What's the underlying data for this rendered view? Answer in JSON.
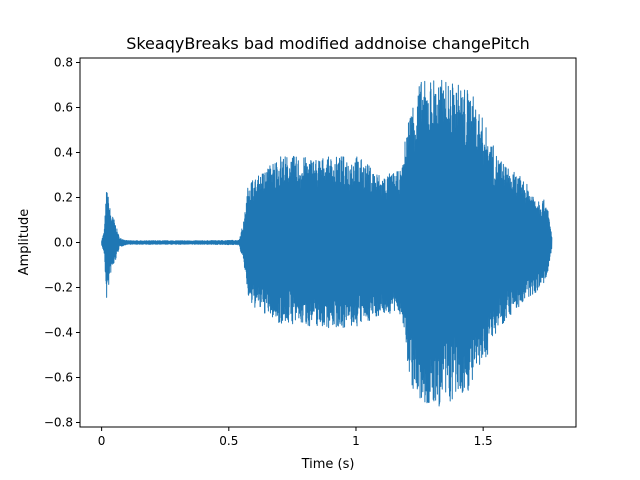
{
  "chart_data": {
    "type": "line",
    "title": "SkeaqyBreaks bad modified addnoise changePitch",
    "xlabel": "Time (s)",
    "ylabel": "Amplitude",
    "xlim": [
      -0.085,
      1.865
    ],
    "ylim": [
      -0.82,
      0.82
    ],
    "xticks": [
      0,
      0.5,
      1,
      1.5
    ],
    "xtick_labels": [
      "0",
      "0.5",
      "1",
      "1.5"
    ],
    "yticks": [
      -0.8,
      -0.6,
      -0.4,
      -0.2,
      0.0,
      0.2,
      0.4,
      0.6,
      0.8
    ],
    "ytick_labels": [
      "−0.8",
      "−0.6",
      "−0.4",
      "−0.2",
      "0.0",
      "0.2",
      "0.4",
      "0.6",
      "0.8"
    ],
    "grid": false,
    "series": [
      {
        "color": "#1f77b4",
        "envelope": {
          "t": [
            0.0,
            0.01,
            0.02,
            0.035,
            0.05,
            0.07,
            0.1,
            0.2,
            0.4,
            0.54,
            0.56,
            0.58,
            0.6,
            0.7,
            0.8,
            0.9,
            1.0,
            1.1,
            1.18,
            1.2,
            1.22,
            1.25,
            1.28,
            1.3,
            1.35,
            1.4,
            1.45,
            1.5,
            1.55,
            1.6,
            1.65,
            1.7,
            1.75,
            1.77
          ],
          "upper": [
            0.01,
            0.05,
            0.25,
            0.14,
            0.1,
            0.02,
            0.008,
            0.008,
            0.008,
            0.01,
            0.1,
            0.3,
            0.28,
            0.39,
            0.38,
            0.38,
            0.39,
            0.3,
            0.32,
            0.53,
            0.62,
            0.72,
            0.72,
            0.74,
            0.72,
            0.71,
            0.68,
            0.55,
            0.4,
            0.33,
            0.29,
            0.22,
            0.18,
            0.03
          ],
          "lower": [
            -0.01,
            -0.05,
            -0.26,
            -0.14,
            -0.1,
            -0.02,
            -0.008,
            -0.008,
            -0.008,
            -0.01,
            -0.1,
            -0.28,
            -0.29,
            -0.36,
            -0.37,
            -0.38,
            -0.38,
            -0.32,
            -0.32,
            -0.53,
            -0.65,
            -0.72,
            -0.74,
            -0.74,
            -0.73,
            -0.7,
            -0.65,
            -0.55,
            -0.4,
            -0.33,
            -0.28,
            -0.23,
            -0.17,
            -0.03
          ]
        }
      }
    ]
  }
}
